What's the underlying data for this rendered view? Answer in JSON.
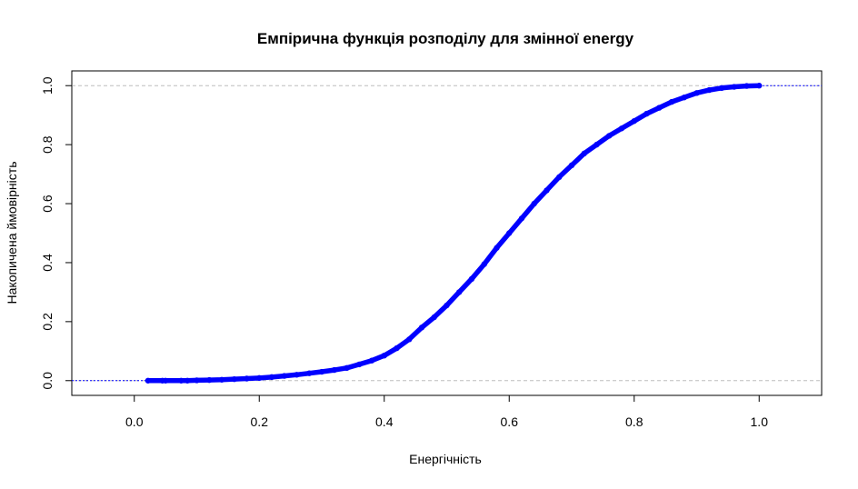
{
  "chart_data": {
    "type": "line",
    "title": "Емпірична функція розподілу для змінної energy",
    "xlabel": "Енергічність",
    "ylabel": "Накопичена ймовірність",
    "xlim": [
      -0.1,
      1.1
    ],
    "ylim": [
      -0.05,
      1.05
    ],
    "x_ticks": [
      "0.0",
      "0.2",
      "0.4",
      "0.6",
      "0.8",
      "1.0"
    ],
    "y_ticks": [
      "0.0",
      "0.2",
      "0.4",
      "0.6",
      "0.8",
      "1.0"
    ],
    "reference_lines_y": [
      0,
      1
    ],
    "grid": false,
    "legend": "none",
    "series_color": "#0000ff",
    "reference_color": "#bebebe",
    "series": [
      {
        "x": [
          0.022,
          0.045,
          0.05,
          0.075,
          0.085,
          0.1,
          0.12,
          0.14,
          0.16,
          0.18,
          0.2,
          0.22,
          0.24,
          0.26,
          0.28,
          0.3,
          0.32,
          0.34,
          0.36,
          0.38,
          0.4,
          0.42,
          0.44,
          0.46,
          0.48,
          0.5,
          0.52,
          0.54,
          0.56,
          0.58,
          0.6,
          0.62,
          0.64,
          0.66,
          0.68,
          0.7,
          0.72,
          0.74,
          0.76,
          0.78,
          0.8,
          0.82,
          0.84,
          0.86,
          0.88,
          0.9,
          0.92,
          0.94,
          0.96,
          0.98,
          1.0
        ],
        "y": [
          0.0,
          0.0,
          0.0,
          0.0,
          0.0,
          0.001,
          0.002,
          0.003,
          0.005,
          0.007,
          0.009,
          0.012,
          0.016,
          0.02,
          0.025,
          0.03,
          0.036,
          0.043,
          0.055,
          0.068,
          0.085,
          0.11,
          0.14,
          0.18,
          0.215,
          0.255,
          0.3,
          0.345,
          0.395,
          0.45,
          0.5,
          0.55,
          0.6,
          0.645,
          0.69,
          0.73,
          0.77,
          0.8,
          0.83,
          0.855,
          0.88,
          0.905,
          0.925,
          0.945,
          0.96,
          0.975,
          0.985,
          0.992,
          0.996,
          0.999,
          1.0
        ]
      }
    ]
  }
}
